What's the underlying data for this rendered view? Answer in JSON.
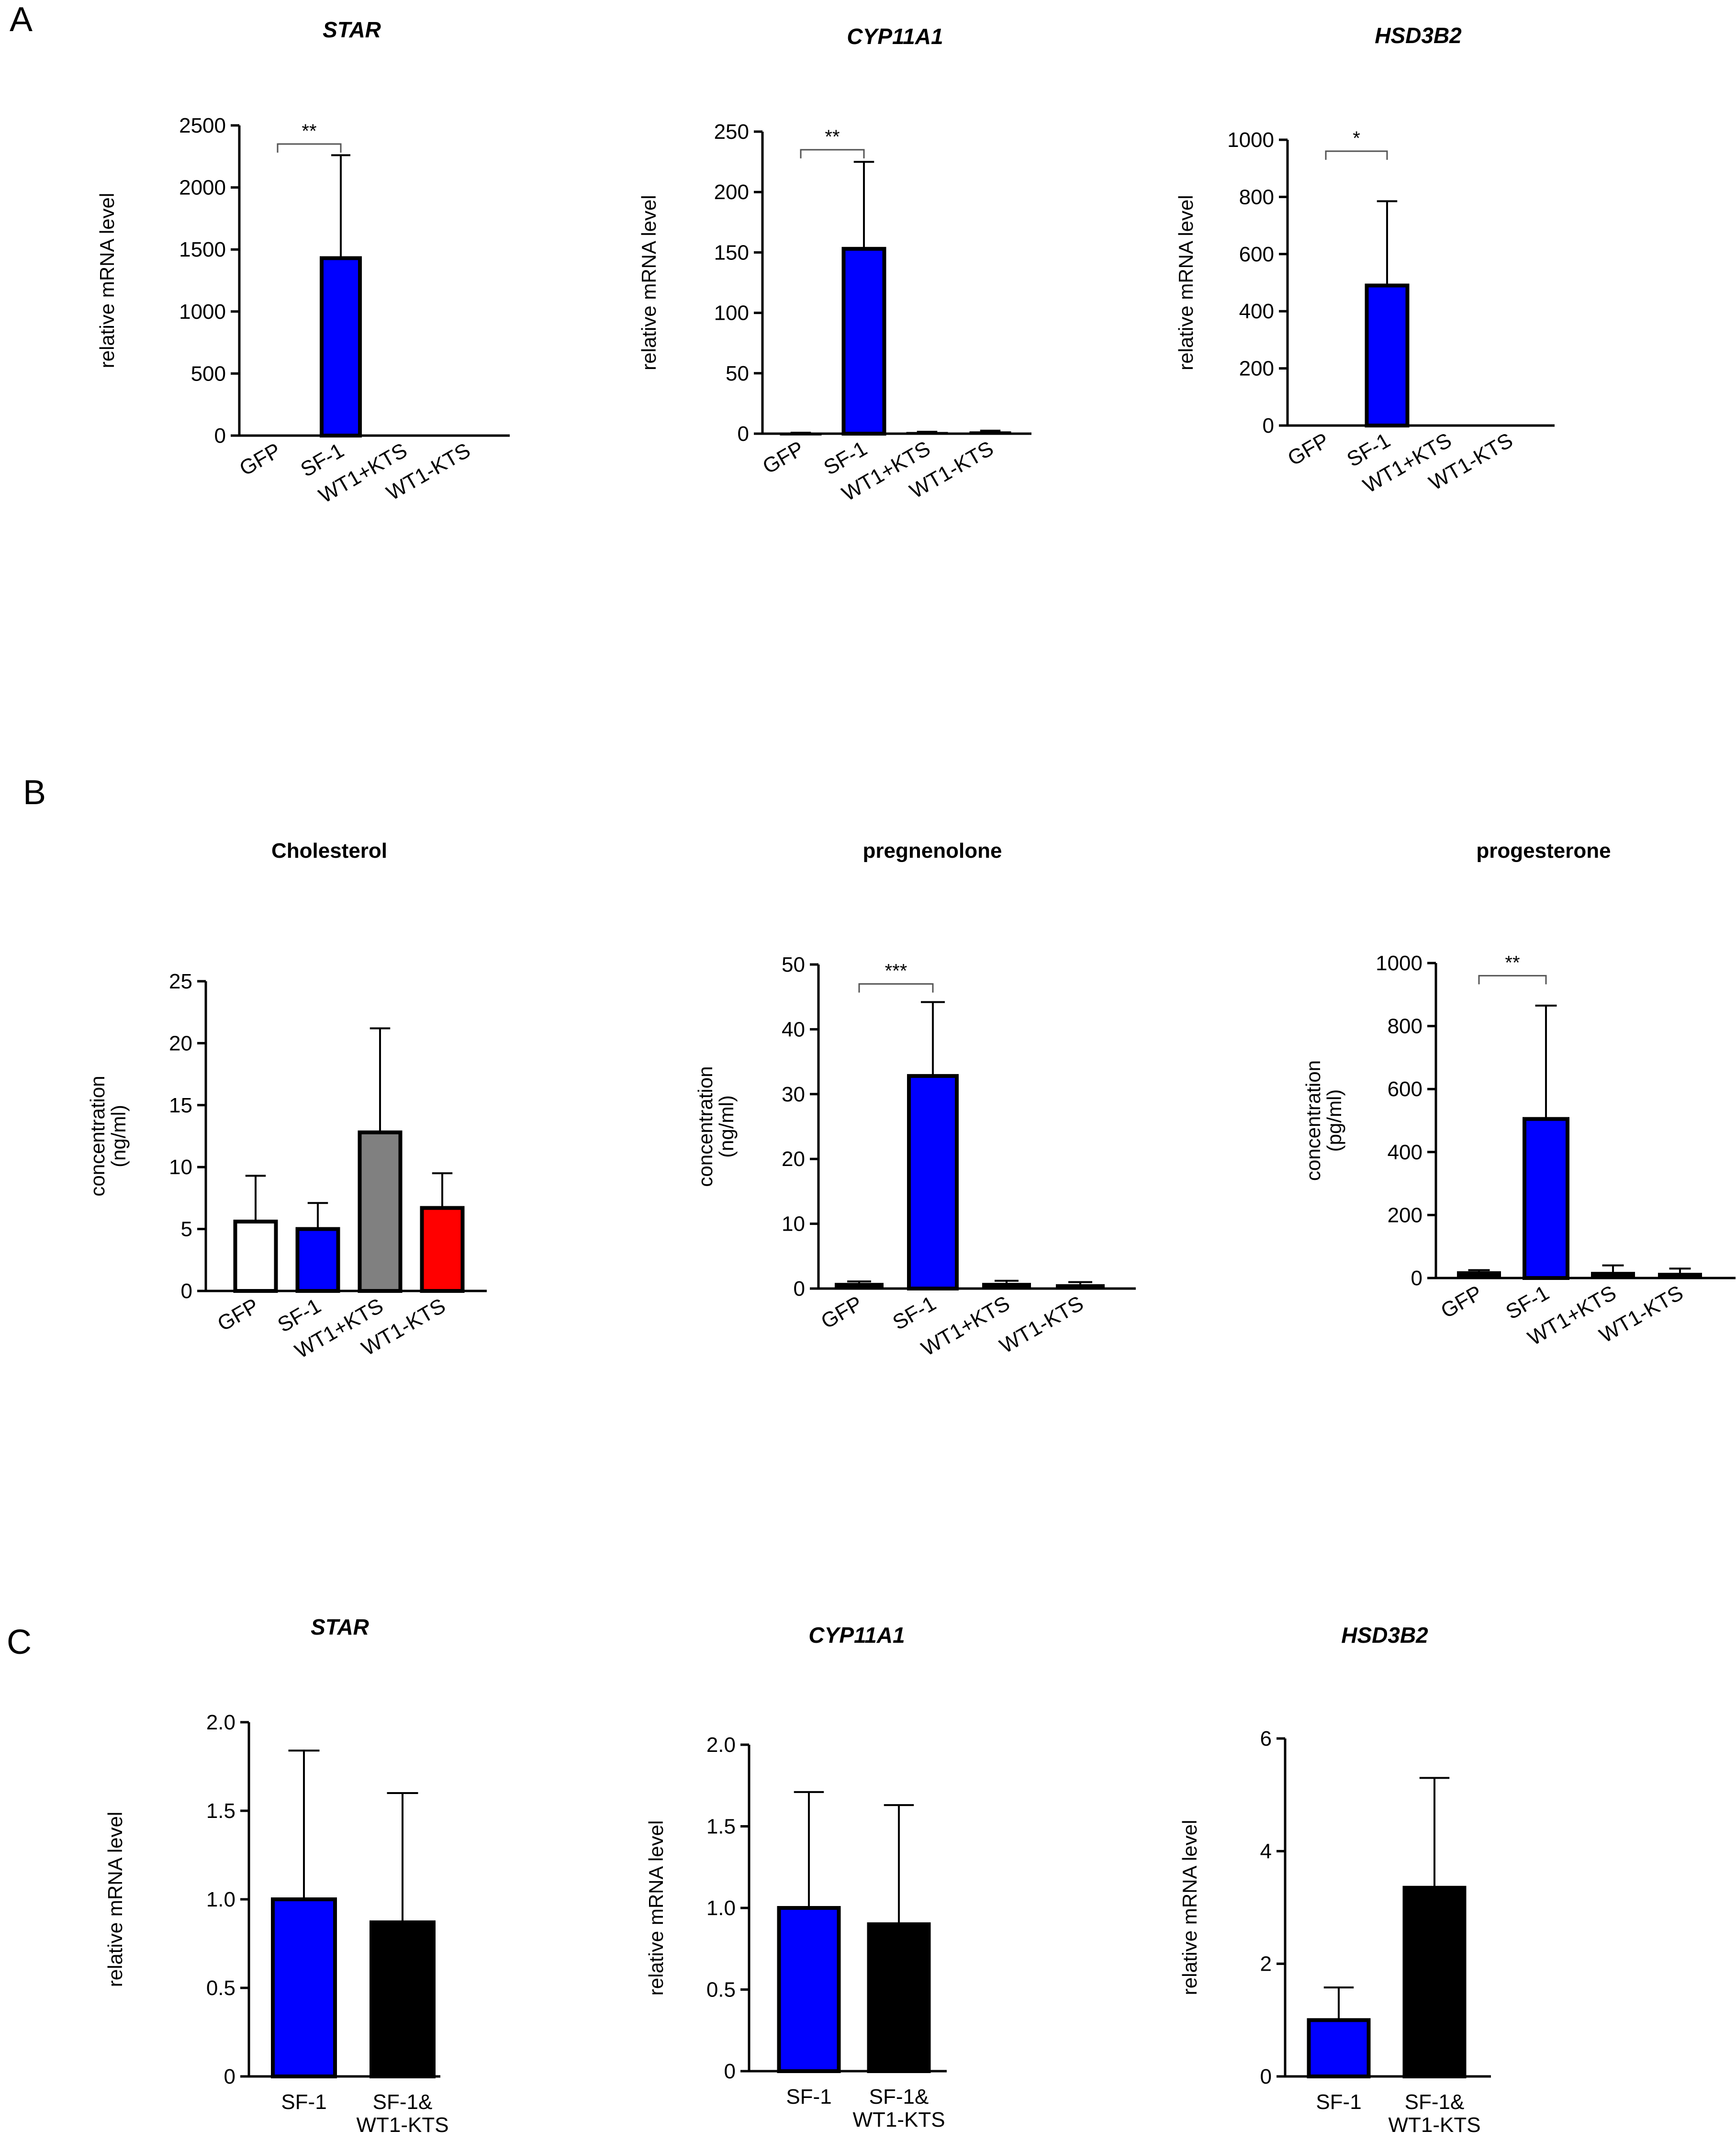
{
  "figure": {
    "panel_labels": [
      "A",
      "B",
      "C"
    ]
  },
  "colors": {
    "blue": "#0000ff",
    "black": "#000000",
    "white": "#ffffff",
    "gray": "#808080",
    "red": "#ff0000"
  },
  "chart_data": [
    {
      "id": "A1",
      "panel": "A",
      "type": "bar",
      "title": "STAR",
      "title_style": "italic",
      "ylabel": "relative mRNA level",
      "xlabel": "",
      "ylim": [
        0,
        2500
      ],
      "yticks": [
        0,
        500,
        1000,
        1500,
        2000,
        2500
      ],
      "ytick_labels": [
        "0",
        "500",
        "1000",
        "1500",
        "2000",
        "2500"
      ],
      "categories": [
        "GFP",
        "SF-1",
        "WT1+KTS",
        "WT1-KTS"
      ],
      "values": [
        0,
        1430,
        0,
        0
      ],
      "errors": [
        0,
        830,
        0,
        0
      ],
      "colors": [
        "#ffffff",
        "#0000ff",
        "#000000",
        "#000000"
      ],
      "significance": [
        {
          "from": 0,
          "to": 1,
          "label": "**",
          "y": 2350
        }
      ]
    },
    {
      "id": "A2",
      "panel": "A",
      "type": "bar",
      "title": "CYP11A1",
      "title_style": "italic",
      "ylabel": "relative mRNA level",
      "xlabel": "",
      "ylim": [
        0,
        250
      ],
      "yticks": [
        0,
        50,
        100,
        150,
        200,
        250
      ],
      "ytick_labels": [
        "0",
        "50",
        "100",
        "150",
        "200",
        "250"
      ],
      "categories": [
        "GFP",
        "SF-1",
        "WT1+KTS",
        "WT1-KTS"
      ],
      "values": [
        0.5,
        153,
        1,
        1.5
      ],
      "errors": [
        0.3,
        72,
        0.6,
        1
      ],
      "colors": [
        "#000000",
        "#0000ff",
        "#000000",
        "#000000"
      ],
      "significance": [
        {
          "from": 0,
          "to": 1,
          "label": "**",
          "y": 235
        }
      ]
    },
    {
      "id": "A3",
      "panel": "A",
      "type": "bar",
      "title": "HSD3B2",
      "title_style": "italic",
      "ylabel": "relative mRNA level",
      "xlabel": "",
      "ylim": [
        0,
        1000
      ],
      "yticks": [
        0,
        200,
        400,
        600,
        800,
        1000
      ],
      "ytick_labels": [
        "0",
        "200",
        "400",
        "600",
        "800",
        "1000"
      ],
      "categories": [
        "GFP",
        "SF-1",
        "WT1+KTS",
        "WT1-KTS"
      ],
      "values": [
        0,
        490,
        0,
        0
      ],
      "errors": [
        0,
        295,
        0,
        0
      ],
      "colors": [
        "#ffffff",
        "#0000ff",
        "#000000",
        "#000000"
      ],
      "significance": [
        {
          "from": 0,
          "to": 1,
          "label": "*",
          "y": 960
        }
      ]
    },
    {
      "id": "B1",
      "panel": "B",
      "type": "bar",
      "title": "Cholesterol",
      "title_style": "bold",
      "ylabel": "concentration\n(ng/ml)",
      "xlabel": "",
      "ylim": [
        0,
        25
      ],
      "yticks": [
        0,
        5,
        10,
        15,
        20,
        25
      ],
      "ytick_labels": [
        "0",
        "5",
        "10",
        "15",
        "20",
        "25"
      ],
      "categories": [
        "GFP",
        "SF-1",
        "WT1+KTS",
        "WT1-KTS"
      ],
      "values": [
        5.6,
        5.0,
        12.8,
        6.7
      ],
      "errors": [
        3.7,
        2.1,
        8.4,
        2.8
      ],
      "colors": [
        "#ffffff",
        "#0000ff",
        "#808080",
        "#ff0000"
      ],
      "significance": []
    },
    {
      "id": "B2",
      "panel": "B",
      "type": "bar",
      "title": "pregnenolone",
      "title_style": "bold",
      "ylabel": "concentration\n(ng/ml)",
      "xlabel": "",
      "ylim": [
        0,
        50
      ],
      "yticks": [
        0,
        10,
        20,
        30,
        40,
        50
      ],
      "ytick_labels": [
        "0",
        "10",
        "20",
        "30",
        "40",
        "50"
      ],
      "categories": [
        "GFP",
        "SF-1",
        "WT1+KTS",
        "WT1-KTS"
      ],
      "values": [
        0.8,
        32.8,
        0.8,
        0.6
      ],
      "errors": [
        0.3,
        11.4,
        0.4,
        0.4
      ],
      "colors": [
        "#000000",
        "#0000ff",
        "#000000",
        "#000000"
      ],
      "significance": [
        {
          "from": 0,
          "to": 1,
          "label": "***",
          "y": 47
        }
      ]
    },
    {
      "id": "B3",
      "panel": "B",
      "type": "bar",
      "title": "progesterone",
      "title_style": "bold",
      "ylabel": "concentration\n(pg/ml)",
      "xlabel": "",
      "ylim": [
        0,
        1000
      ],
      "yticks": [
        0,
        200,
        400,
        600,
        800,
        1000
      ],
      "ytick_labels": [
        "0",
        "200",
        "400",
        "600",
        "800",
        "1000"
      ],
      "categories": [
        "GFP",
        "SF-1",
        "WT1+KTS",
        "WT1-KTS"
      ],
      "values": [
        20,
        505,
        18,
        15
      ],
      "errors": [
        5,
        360,
        22,
        15
      ],
      "colors": [
        "#000000",
        "#0000ff",
        "#000000",
        "#000000"
      ],
      "significance": [
        {
          "from": 0,
          "to": 1,
          "label": "**",
          "y": 960
        }
      ]
    },
    {
      "id": "C1",
      "panel": "C",
      "type": "bar",
      "title": "STAR",
      "title_style": "italic",
      "ylabel": "relative mRNA level",
      "xlabel": "",
      "ylim": [
        0,
        2.0
      ],
      "yticks": [
        0,
        0.5,
        1.0,
        1.5,
        2.0
      ],
      "ytick_labels": [
        "0",
        "0.5",
        "1.0",
        "1.5",
        "2.0"
      ],
      "categories": [
        "SF-1",
        "SF-1&\nWT1-KTS"
      ],
      "values": [
        1.0,
        0.87
      ],
      "errors": [
        0.84,
        0.73
      ],
      "colors": [
        "#0000ff",
        "#000000"
      ],
      "significance": []
    },
    {
      "id": "C2",
      "panel": "C",
      "type": "bar",
      "title": "CYP11A1",
      "title_style": "italic",
      "ylabel": "relative mRNA level",
      "xlabel": "",
      "ylim": [
        0,
        2.0
      ],
      "yticks": [
        0,
        0.5,
        1.0,
        1.5,
        2.0
      ],
      "ytick_labels": [
        "0",
        "0.5",
        "1.0",
        "1.5",
        "2.0"
      ],
      "categories": [
        "SF-1",
        "SF-1&\nWT1-KTS"
      ],
      "values": [
        1.0,
        0.9
      ],
      "errors": [
        0.71,
        0.73
      ],
      "colors": [
        "#0000ff",
        "#000000"
      ],
      "significance": []
    },
    {
      "id": "C3",
      "panel": "C",
      "type": "bar",
      "title": "HSD3B2",
      "title_style": "italic",
      "ylabel": "relative mRNA level",
      "xlabel": "",
      "ylim": [
        0,
        6
      ],
      "yticks": [
        0,
        2,
        4,
        6
      ],
      "ytick_labels": [
        "0",
        "2",
        "4",
        "6"
      ],
      "categories": [
        "SF-1",
        "SF-1&\nWT1-KTS"
      ],
      "values": [
        1.0,
        3.35
      ],
      "errors": [
        0.58,
        1.95
      ],
      "colors": [
        "#0000ff",
        "#000000"
      ],
      "significance": []
    }
  ]
}
